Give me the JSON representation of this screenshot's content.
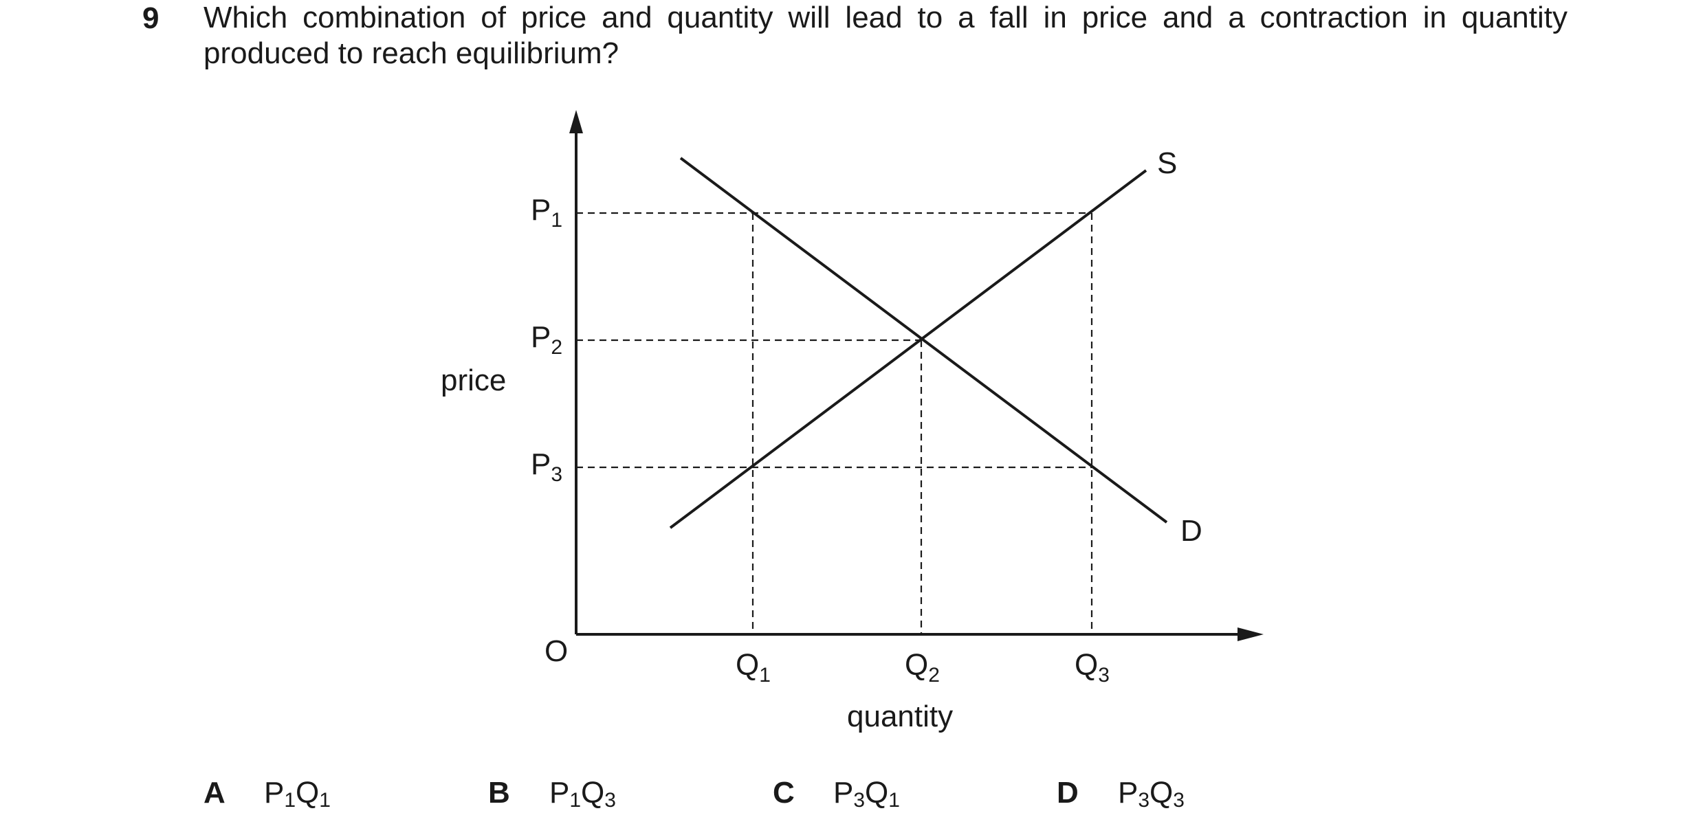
{
  "question": {
    "number": "9",
    "text": "Which combination of price and quantity will lead to a fall in price and a contraction in quantity produced to reach equilibrium?"
  },
  "diagram": {
    "y_axis_label": "price",
    "x_axis_label": "quantity",
    "origin_label": "O",
    "price_levels": [
      {
        "base": "P",
        "sub": "1"
      },
      {
        "base": "P",
        "sub": "2"
      },
      {
        "base": "P",
        "sub": "3"
      }
    ],
    "quantity_levels": [
      {
        "base": "Q",
        "sub": "1"
      },
      {
        "base": "Q",
        "sub": "2"
      },
      {
        "base": "Q",
        "sub": "3"
      }
    ],
    "supply_label": "S",
    "demand_label": "D"
  },
  "options": [
    {
      "letter": "A",
      "p": "1",
      "q": "1"
    },
    {
      "letter": "B",
      "p": "1",
      "q": "3"
    },
    {
      "letter": "C",
      "p": "3",
      "q": "1"
    },
    {
      "letter": "D",
      "p": "3",
      "q": "3"
    }
  ]
}
